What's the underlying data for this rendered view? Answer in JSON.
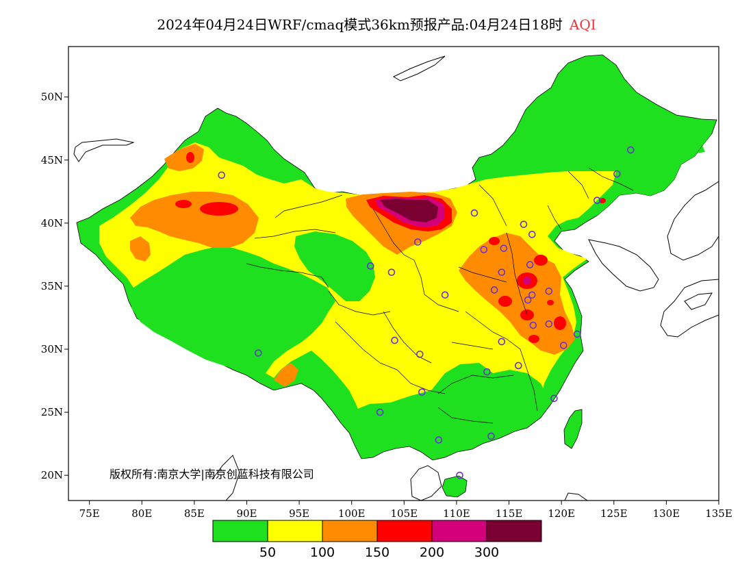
{
  "title": {
    "main": "2024年04月24日WRF/cmaq模式36km预报产品:04月24日18时",
    "variable": "AQI"
  },
  "axes": {
    "lon_range": [
      73,
      135
    ],
    "lat_range": [
      18,
      54
    ],
    "x_ticks": [
      "75E",
      "80E",
      "85E",
      "90E",
      "95E",
      "100E",
      "105E",
      "110E",
      "115E",
      "120E",
      "125E",
      "130E",
      "135E"
    ],
    "x_tick_values": [
      75,
      80,
      85,
      90,
      95,
      100,
      105,
      110,
      115,
      120,
      125,
      130,
      135
    ],
    "y_ticks": [
      "50N",
      "45N",
      "40N",
      "35N",
      "30N",
      "25N",
      "20N"
    ],
    "y_tick_values": [
      50,
      45,
      40,
      35,
      30,
      25,
      20
    ]
  },
  "copyright": "版权所有:南京大学|南京创蓝科技有限公司",
  "legend": {
    "colors": [
      "#1ee01e",
      "#ffff00",
      "#ff8c00",
      "#ff0000",
      "#d4007a",
      "#7a0032"
    ],
    "labels": [
      "50",
      "100",
      "150",
      "200",
      "300"
    ]
  },
  "stations": [
    [
      87.6,
      43.8
    ],
    [
      91.1,
      29.7
    ],
    [
      101.8,
      36.6
    ],
    [
      103.8,
      36.1
    ],
    [
      106.3,
      38.5
    ],
    [
      111.7,
      40.8
    ],
    [
      104.1,
      30.7
    ],
    [
      106.5,
      29.6
    ],
    [
      106.7,
      26.6
    ],
    [
      102.7,
      25.0
    ],
    [
      108.3,
      22.8
    ],
    [
      113.3,
      23.1
    ],
    [
      110.3,
      20.0
    ],
    [
      112.9,
      28.2
    ],
    [
      114.3,
      30.6
    ],
    [
      115.9,
      28.7
    ],
    [
      117.3,
      31.9
    ],
    [
      118.8,
      32.0
    ],
    [
      120.2,
      30.3
    ],
    [
      121.5,
      31.2
    ],
    [
      119.3,
      26.1
    ],
    [
      113.6,
      34.7
    ],
    [
      117.0,
      36.7
    ],
    [
      114.5,
      38.0
    ],
    [
      112.6,
      37.9
    ],
    [
      116.4,
      39.9
    ],
    [
      117.2,
      39.1
    ],
    [
      123.4,
      41.8
    ],
    [
      125.3,
      43.9
    ],
    [
      126.6,
      45.8
    ],
    [
      108.9,
      34.3
    ],
    [
      116.8,
      33.9
    ],
    [
      117.2,
      34.3
    ],
    [
      118.8,
      34.6
    ],
    [
      114.3,
      36.1
    ]
  ]
}
